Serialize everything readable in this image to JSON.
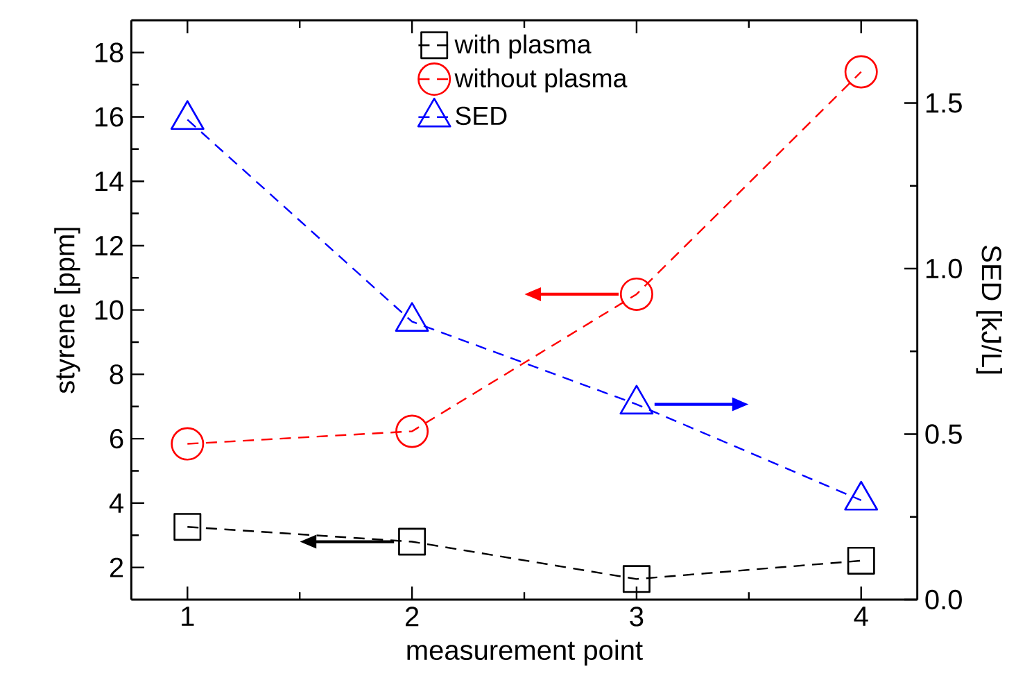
{
  "chart_data": {
    "type": "line",
    "xlabel": "measurement point",
    "ylabel": "styrene [ppm]",
    "y2label": "SED [kJ/L]",
    "x": [
      1,
      2,
      3,
      4
    ],
    "xlim": [
      0.75,
      4.25
    ],
    "xticks": [
      1,
      2,
      3,
      4
    ],
    "ylim": [
      1,
      19
    ],
    "yticks": [
      2,
      4,
      6,
      8,
      10,
      12,
      14,
      16,
      18
    ],
    "y2lim": [
      0,
      1.75
    ],
    "y2ticks": [
      {
        "value": 0,
        "label": "0.0"
      },
      0.5,
      {
        "value": 1,
        "label": "1.0"
      },
      1.5
    ],
    "legend": "top",
    "line_style": "dashed",
    "series": [
      {
        "name": "with plasma",
        "color": "#000000",
        "marker": "square",
        "values": [
          3.26,
          2.8,
          1.64,
          2.21
        ]
      },
      {
        "name": "without plasma",
        "color": "#ff0000",
        "marker": "circle",
        "values": [
          5.84,
          6.23,
          10.49,
          17.4
        ]
      },
      {
        "name": "SED",
        "color": "#0000ff",
        "marker": "triangle",
        "axis": "y2",
        "values": [
          1.45,
          0.84,
          0.59,
          0.3
        ]
      }
    ]
  }
}
